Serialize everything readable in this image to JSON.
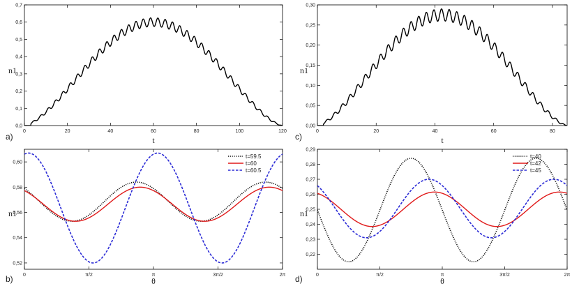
{
  "chart_data": [
    {
      "type": "line",
      "panel_label": "a)",
      "xlabel": "t",
      "ylabel": "n1",
      "xlim": [
        0,
        120
      ],
      "ylim": [
        0,
        0.7
      ],
      "xticks": [
        0,
        20,
        40,
        60,
        80,
        100,
        120
      ],
      "xtick_labels": [
        "0",
        "20",
        "40",
        "60",
        "80",
        "100",
        "120"
      ],
      "yticks": [
        0,
        0.1,
        0.2,
        0.3,
        0.4,
        0.5,
        0.6,
        0.7
      ],
      "ytick_labels": [
        "0,0",
        "0,1",
        "0,2",
        "0,3",
        "0,4",
        "0,5",
        "0,6",
        "0,7"
      ],
      "series": [
        {
          "name": "n1(t)",
          "color": "#000000",
          "dash": "solid",
          "model": "envelope",
          "params": {
            "T": 120,
            "amp": 0.6,
            "start": 3,
            "osc_amp": 0.025,
            "osc_period": 3.4
          }
        }
      ]
    },
    {
      "type": "line",
      "panel_label": "c)",
      "xlabel": "t",
      "ylabel": "n1",
      "xlim": [
        0,
        85
      ],
      "ylim": [
        0,
        0.3
      ],
      "xticks": [
        0,
        20,
        40,
        60,
        80
      ],
      "xtick_labels": [
        "0",
        "20",
        "40",
        "60",
        "80"
      ],
      "yticks": [
        0,
        0.05,
        0.1,
        0.15,
        0.2,
        0.25,
        0.3
      ],
      "ytick_labels": [
        "0,00",
        "0,05",
        "0,10",
        "0,15",
        "0,20",
        "0,25",
        "0,30"
      ],
      "series": [
        {
          "name": "n1(t)",
          "color": "#000000",
          "dash": "solid",
          "model": "envelope",
          "params": {
            "T": 85,
            "amp": 0.275,
            "start": 2,
            "osc_amp": 0.015,
            "osc_period": 2.6
          }
        }
      ]
    },
    {
      "type": "line",
      "panel_label": "b)",
      "xlabel": "θ",
      "ylabel": "n1",
      "xlim": [
        0,
        6.2832
      ],
      "ylim": [
        0.515,
        0.61
      ],
      "xticks": [
        0,
        1.5708,
        3.1416,
        4.7124,
        6.2832
      ],
      "xtick_labels": [
        "0",
        "π/2",
        "π",
        "3π/2",
        "2π"
      ],
      "yticks": [
        0.52,
        0.54,
        0.56,
        0.58,
        0.6
      ],
      "ytick_labels": [
        "0,52",
        "0,54",
        "0,56",
        "0,58",
        "0,60"
      ],
      "legend_position": "top-right",
      "series": [
        {
          "name": "t=59.5",
          "color": "#111111",
          "dash": "1.2,1.6",
          "model": "sine",
          "params": {
            "mean": 0.5685,
            "amp": 0.0155,
            "phase": 2.4
          }
        },
        {
          "name": "t=60",
          "color": "#e01a1a",
          "dash": "solid",
          "model": "sine",
          "params": {
            "mean": 0.5665,
            "amp": 0.0135,
            "phase": 2.22
          }
        },
        {
          "name": "t=60.5",
          "color": "#2b2bd6",
          "dash": "3.5,2",
          "model": "sine",
          "params": {
            "mean": 0.5635,
            "amp": 0.0435,
            "phase": 1.37
          }
        }
      ]
    },
    {
      "type": "line",
      "panel_label": "d)",
      "xlabel": "θ",
      "ylabel": "n1",
      "xlim": [
        0,
        6.2832
      ],
      "ylim": [
        0.21,
        0.29
      ],
      "xticks": [
        0,
        1.5708,
        3.1416,
        4.7124,
        6.2832
      ],
      "xtick_labels": [
        "0",
        "π/2",
        "π",
        "3π/2",
        "2π"
      ],
      "yticks": [
        0.22,
        0.23,
        0.24,
        0.25,
        0.26,
        0.27,
        0.28,
        0.29
      ],
      "ytick_labels": [
        "0,22",
        "0,23",
        "0,24",
        "0,25",
        "0,26",
        "0,27",
        "0,28",
        "0,29"
      ],
      "legend_position": "top-right",
      "series": [
        {
          "name": "t=40",
          "color": "#111111",
          "dash": "1.2,1.6",
          "model": "sine",
          "params": {
            "mean": 0.2495,
            "amp": 0.0345,
            "phase": 3.14
          }
        },
        {
          "name": "t=42",
          "color": "#e01a1a",
          "dash": "solid",
          "model": "sine",
          "params": {
            "mean": 0.25,
            "amp": 0.0115,
            "phase": 1.96
          }
        },
        {
          "name": "t=45",
          "color": "#2b2bd6",
          "dash": "3.5,2",
          "model": "sine",
          "params": {
            "mean": 0.2505,
            "amp": 0.0195,
            "phase": 2.24
          }
        }
      ]
    }
  ]
}
